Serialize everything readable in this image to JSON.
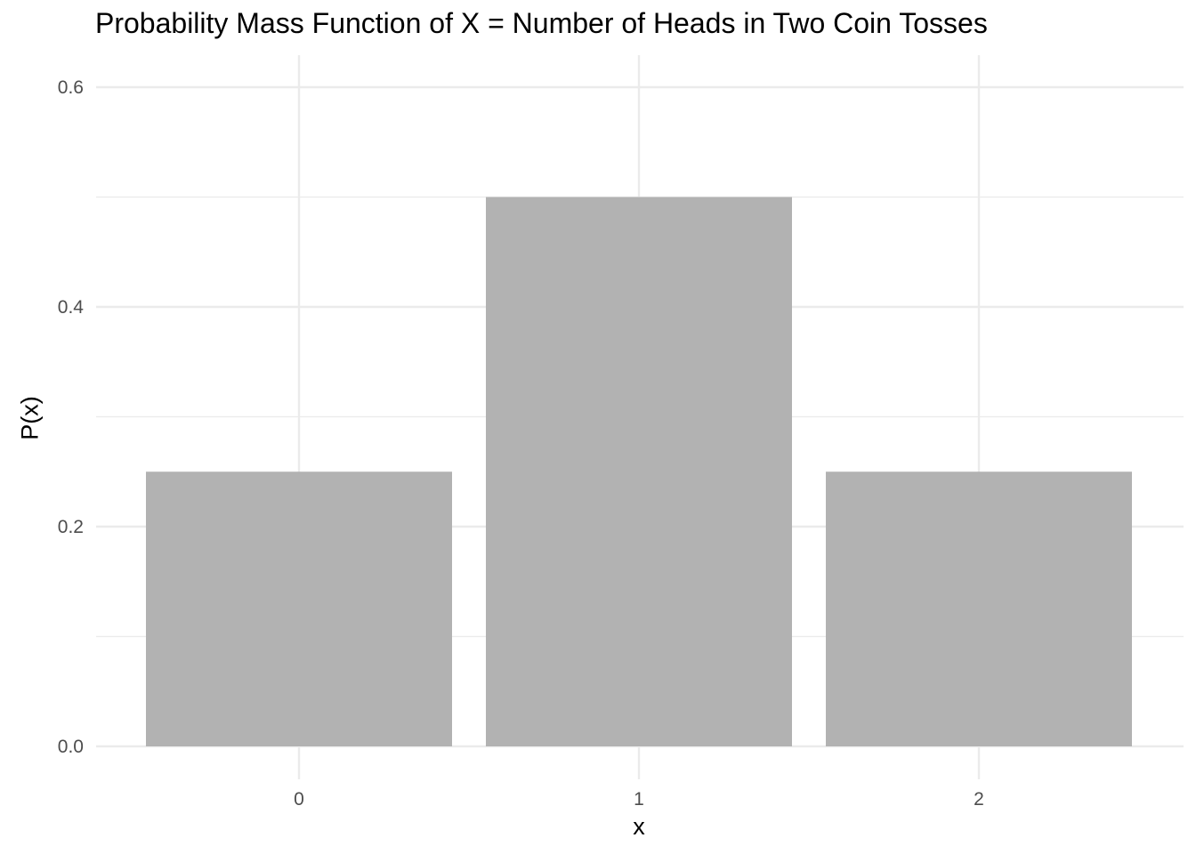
{
  "chart_data": {
    "type": "bar",
    "title": "Probability Mass Function of X = Number of Heads in Two Coin Tosses",
    "xlabel": "x",
    "ylabel": "P(x)",
    "categories": [
      "0",
      "1",
      "2"
    ],
    "values": [
      0.25,
      0.5,
      0.25
    ],
    "ylim": [
      0,
      0.63
    ],
    "yticks": [
      "0.0",
      "0.2",
      "0.4",
      "0.6"
    ],
    "ytick_values": [
      0,
      0.2,
      0.4,
      0.6
    ],
    "grid": true,
    "bar_color": "#b2b2b2",
    "grid_color": "#ebebeb",
    "tick_label_color": "#4d4d4d"
  }
}
